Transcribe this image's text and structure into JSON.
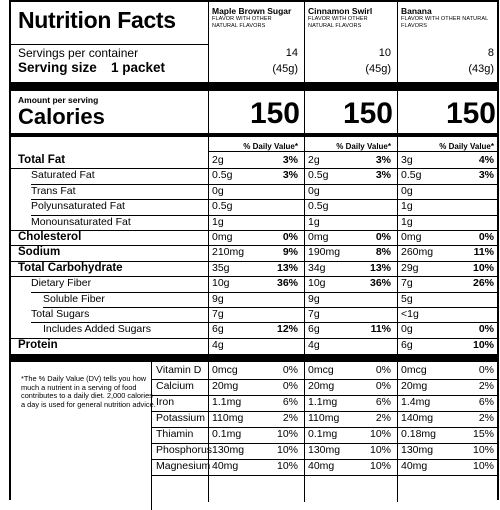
{
  "header": {
    "title": "Nutrition Facts",
    "products": [
      {
        "name": "Maple Brown Sugar",
        "flavor": "FLAVOR WITH OTHER NATURAL FLAVORS",
        "servings": "14",
        "size": "(45g)",
        "calories": "150"
      },
      {
        "name": "Cinnamon Swirl",
        "flavor": "FLAVOR WITH OTHER NATURAL FLAVORS",
        "servings": "10",
        "size": "(45g)",
        "calories": "150"
      },
      {
        "name": "Banana",
        "flavor": "FLAVOR WITH OTHER NATURAL FLAVORS",
        "servings": "8",
        "size": "(43g)",
        "calories": "150"
      }
    ]
  },
  "servings_label": "Servings per container",
  "serving_size_label": "Serving size",
  "serving_size_value": "1 packet",
  "amount_per_serving": "Amount per serving",
  "calories_label": "Calories",
  "dv_header": "% Daily Value*",
  "nutrients": [
    {
      "label": "Total Fat",
      "bold": true,
      "indent": 0,
      "vals": [
        [
          "2g",
          "3%"
        ],
        [
          "2g",
          "3%"
        ],
        [
          "3g",
          "4%"
        ]
      ]
    },
    {
      "label": "Saturated Fat",
      "bold": false,
      "indent": 1,
      "vals": [
        [
          "0.5g",
          "3%"
        ],
        [
          "0.5g",
          "3%"
        ],
        [
          "0.5g",
          "3%"
        ]
      ]
    },
    {
      "label": "Trans Fat",
      "bold": false,
      "indent": 1,
      "vals": [
        [
          "0g",
          ""
        ],
        [
          "0g",
          ""
        ],
        [
          "0g",
          ""
        ]
      ]
    },
    {
      "label": "Polyunsaturated Fat",
      "bold": false,
      "indent": 1,
      "vals": [
        [
          "0.5g",
          ""
        ],
        [
          "0.5g",
          ""
        ],
        [
          "1g",
          ""
        ]
      ]
    },
    {
      "label": "Monounsaturated Fat",
      "bold": false,
      "indent": 1,
      "vals": [
        [
          "1g",
          ""
        ],
        [
          "1g",
          ""
        ],
        [
          "1g",
          ""
        ]
      ]
    },
    {
      "label": "Cholesterol",
      "bold": true,
      "indent": 0,
      "vals": [
        [
          "0mg",
          "0%"
        ],
        [
          "0mg",
          "0%"
        ],
        [
          "0mg",
          "0%"
        ]
      ]
    },
    {
      "label": "Sodium",
      "bold": true,
      "indent": 0,
      "vals": [
        [
          "210mg",
          "9%"
        ],
        [
          "190mg",
          "8%"
        ],
        [
          "260mg",
          "11%"
        ]
      ]
    },
    {
      "label": "Total Carbohydrate",
      "bold": true,
      "indent": 0,
      "vals": [
        [
          "35g",
          "13%"
        ],
        [
          "34g",
          "13%"
        ],
        [
          "29g",
          "10%"
        ]
      ]
    },
    {
      "label": "Dietary Fiber",
      "bold": false,
      "indent": 1,
      "vals": [
        [
          "10g",
          "36%"
        ],
        [
          "10g",
          "36%"
        ],
        [
          "7g",
          "26%"
        ]
      ]
    },
    {
      "label": "Soluble Fiber",
      "bold": false,
      "indent": 2,
      "vals": [
        [
          "9g",
          ""
        ],
        [
          "9g",
          ""
        ],
        [
          "5g",
          ""
        ]
      ]
    },
    {
      "label": "Total Sugars",
      "bold": false,
      "indent": 1,
      "vals": [
        [
          "7g",
          ""
        ],
        [
          "7g",
          ""
        ],
        [
          "<1g",
          ""
        ]
      ]
    },
    {
      "label": "Includes Added Sugars",
      "bold": false,
      "indent": 2,
      "vals": [
        [
          "6g",
          "12%"
        ],
        [
          "6g",
          "11%"
        ],
        [
          "0g",
          "0%"
        ]
      ]
    },
    {
      "label": "Protein",
      "bold": true,
      "indent": 0,
      "vals": [
        [
          "4g",
          ""
        ],
        [
          "4g",
          ""
        ],
        [
          "6g",
          "10%"
        ]
      ]
    }
  ],
  "footnote": "*The % Daily Value (DV) tells you how much a nutrient in a serving of food contributes to a daily diet. 2,000 calories a day is used for general nutrition advice.",
  "vitamins": [
    {
      "label": "Vitamin D",
      "vals": [
        [
          "0mcg",
          "0%"
        ],
        [
          "0mcg",
          "0%"
        ],
        [
          "0mcg",
          "0%"
        ]
      ]
    },
    {
      "label": "Calcium",
      "vals": [
        [
          "20mg",
          "0%"
        ],
        [
          "20mg",
          "0%"
        ],
        [
          "20mg",
          "2%"
        ]
      ]
    },
    {
      "label": "Iron",
      "vals": [
        [
          "1.1mg",
          "6%"
        ],
        [
          "1.1mg",
          "6%"
        ],
        [
          "1.4mg",
          "6%"
        ]
      ]
    },
    {
      "label": "Potassium",
      "vals": [
        [
          "110mg",
          "2%"
        ],
        [
          "110mg",
          "2%"
        ],
        [
          "140mg",
          "2%"
        ]
      ]
    },
    {
      "label": "Thiamin",
      "vals": [
        [
          "0.1mg",
          "10%"
        ],
        [
          "0.1mg",
          "10%"
        ],
        [
          "0.18mg",
          "15%"
        ]
      ]
    },
    {
      "label": "Phosphorus",
      "vals": [
        [
          "130mg",
          "10%"
        ],
        [
          "130mg",
          "10%"
        ],
        [
          "130mg",
          "10%"
        ]
      ]
    },
    {
      "label": "Magnesium",
      "vals": [
        [
          "40mg",
          "10%"
        ],
        [
          "40mg",
          "10%"
        ],
        [
          "40mg",
          "10%"
        ]
      ]
    }
  ]
}
